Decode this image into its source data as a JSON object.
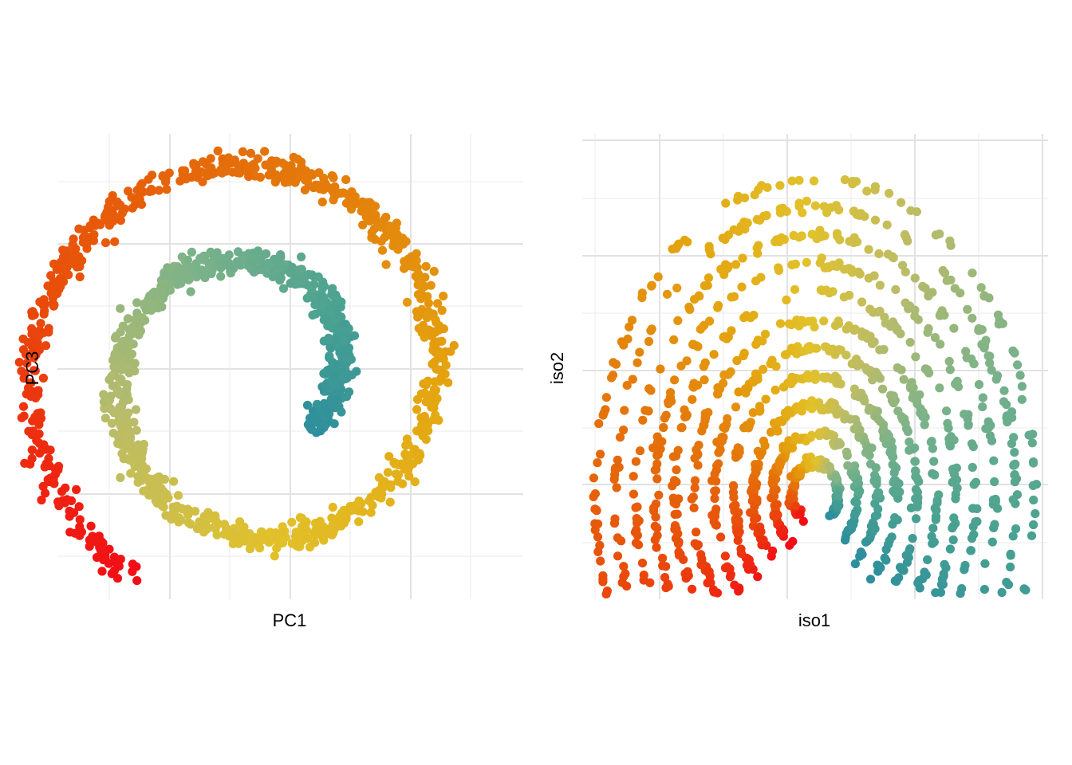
{
  "chart_data": [
    {
      "type": "scatter",
      "xlabel": "PC1",
      "ylabel": "PC3",
      "xlim": [
        -3.3,
        4.5
      ],
      "ylim": [
        -3.7,
        3.95
      ],
      "grid": true,
      "legend": "none",
      "color_scale": [
        "#f20d16",
        "#e84f0a",
        "#e4780a",
        "#e4a40f",
        "#e2c12a",
        "#b9bc6a",
        "#7ab28a",
        "#49a191",
        "#2e8f9c"
      ],
      "shape": "spiral",
      "spiral": {
        "center": [
          0,
          0
        ],
        "angle_start_deg": -123,
        "turns_deg": 640,
        "r_start": 3.9,
        "r_end": 1.25,
        "noise": 0.11,
        "n_points": 1500
      },
      "sample_points": [
        {
          "x": -2.42,
          "y": -3.3,
          "t": 0.0
        },
        {
          "x": -3.38,
          "y": -0.1,
          "t": 0.16
        },
        {
          "x": -2.2,
          "y": 2.85,
          "t": 0.28
        },
        {
          "x": -0.4,
          "y": 3.5,
          "t": 0.34
        },
        {
          "x": 2.1,
          "y": 2.75,
          "t": 0.44
        },
        {
          "x": 3.5,
          "y": 0.2,
          "t": 0.55
        },
        {
          "x": 2.2,
          "y": -2.7,
          "t": 0.66
        },
        {
          "x": 0.0,
          "y": -2.95,
          "t": 0.74
        },
        {
          "x": -1.7,
          "y": -1.1,
          "t": 0.84
        },
        {
          "x": -0.6,
          "y": 1.5,
          "t": 0.93
        },
        {
          "x": 1.3,
          "y": 0.4,
          "t": 1.0
        }
      ]
    },
    {
      "type": "scatter",
      "xlabel": "iso1",
      "ylabel": "iso2",
      "xlim": [
        -1.0,
        1.0
      ],
      "ylim": [
        -1.0,
        1.0
      ],
      "grid": true,
      "legend": "none",
      "color_scale": [
        "#f20d16",
        "#e84f0a",
        "#e4780a",
        "#e4a40f",
        "#e2c12a",
        "#b9bc6a",
        "#7ab28a",
        "#49a191",
        "#2e8f9c"
      ],
      "shape": "unrolled-fan",
      "fan": {
        "center": [
          0.0,
          -0.55
        ],
        "angle_start_deg": 228,
        "angle_end_deg": -42,
        "r_inner": 0.08,
        "r_outer": 1.45,
        "n_ridges": 11,
        "n_points": 1500
      },
      "sample_points": [
        {
          "x": -0.05,
          "y": -0.38,
          "t": 0.0
        },
        {
          "x": -0.5,
          "y": -0.75,
          "t": 0.1
        },
        {
          "x": -0.85,
          "y": -0.2,
          "t": 0.22
        },
        {
          "x": -0.72,
          "y": 0.62,
          "t": 0.33
        },
        {
          "x": -0.2,
          "y": 0.75,
          "t": 0.45
        },
        {
          "x": 0.25,
          "y": 0.7,
          "t": 0.6
        },
        {
          "x": 0.7,
          "y": 0.2,
          "t": 0.78
        },
        {
          "x": 0.55,
          "y": -0.68,
          "t": 1.0
        }
      ]
    }
  ]
}
